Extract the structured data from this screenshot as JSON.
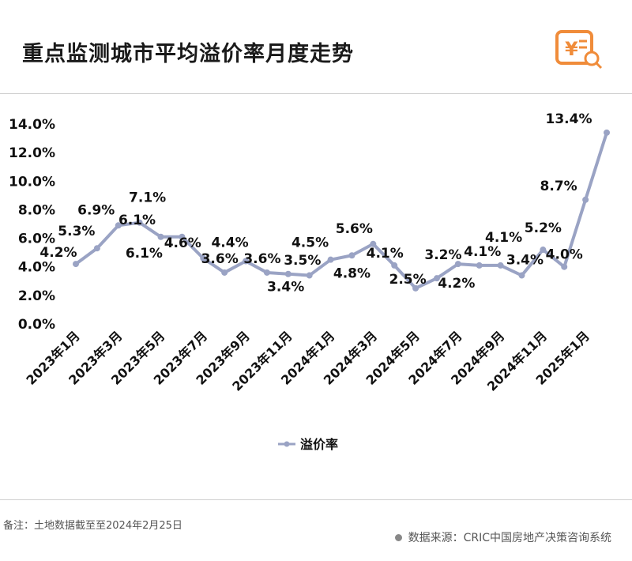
{
  "header": {
    "title": "重点监测城市平均溢价率月度走势",
    "logo": "yuan-document-search-icon",
    "logo_color": "#f08c3a"
  },
  "footer": {
    "note": "备注：土地数据截至至2024年2月25日",
    "source": "数据来源：CRIC中国房地产决策咨询系统"
  },
  "chart_data": {
    "type": "line",
    "title": "",
    "xlabel": "",
    "ylabel": "",
    "ylim": [
      0,
      14
    ],
    "yticks": [
      "0.0%",
      "2.0%",
      "4.0%",
      "6.0%",
      "8.0%",
      "10.0%",
      "12.0%",
      "14.0%"
    ],
    "x": [
      "2023年1月",
      "2023年2月",
      "2023年3月",
      "2023年4月",
      "2023年5月",
      "2023年6月",
      "2023年7月",
      "2023年8月",
      "2023年9月",
      "2023年10月",
      "2023年11月",
      "2023年12月",
      "2024年1月",
      "2024年2月",
      "2024年3月",
      "2024年4月",
      "2024年5月",
      "2024年6月",
      "2024年7月",
      "2024年8月",
      "2024年9月",
      "2024年10月",
      "2024年11月",
      "2024年12月",
      "2025年1月",
      "2025年2月"
    ],
    "xtick_labels": [
      "2023年1月",
      "2023年3月",
      "2023年5月",
      "2023年7月",
      "2023年9月",
      "2023年11月",
      "2024年1月",
      "2024年3月",
      "2024年5月",
      "2024年7月",
      "2024年9月",
      "2024年11月",
      "2025年1月"
    ],
    "series": [
      {
        "name": "溢价率",
        "values": [
          4.2,
          5.3,
          6.9,
          7.1,
          6.1,
          6.1,
          4.6,
          3.6,
          4.4,
          3.6,
          3.5,
          3.4,
          4.5,
          4.8,
          5.6,
          4.1,
          2.5,
          3.2,
          4.2,
          4.1,
          4.1,
          3.4,
          5.2,
          4.0,
          8.7,
          13.4
        ],
        "labels": [
          "4.2%",
          "5.3%",
          "6.9%",
          "7.1%",
          "6.1%",
          "6.1%",
          "4.6%",
          "3.6%",
          "4.4%",
          "3.6%",
          "3.5%",
          "3.4%",
          "4.5%",
          "4.8%",
          "5.6%",
          "4.1%",
          "2.5%",
          "3.2%",
          "4.2%",
          "4.1%",
          "4.1%",
          "3.4%",
          "5.2%",
          "4.0%",
          "8.7%",
          "13.4%"
        ],
        "color": "#9aa3c4"
      }
    ],
    "grid": false,
    "legend": "bottom"
  }
}
